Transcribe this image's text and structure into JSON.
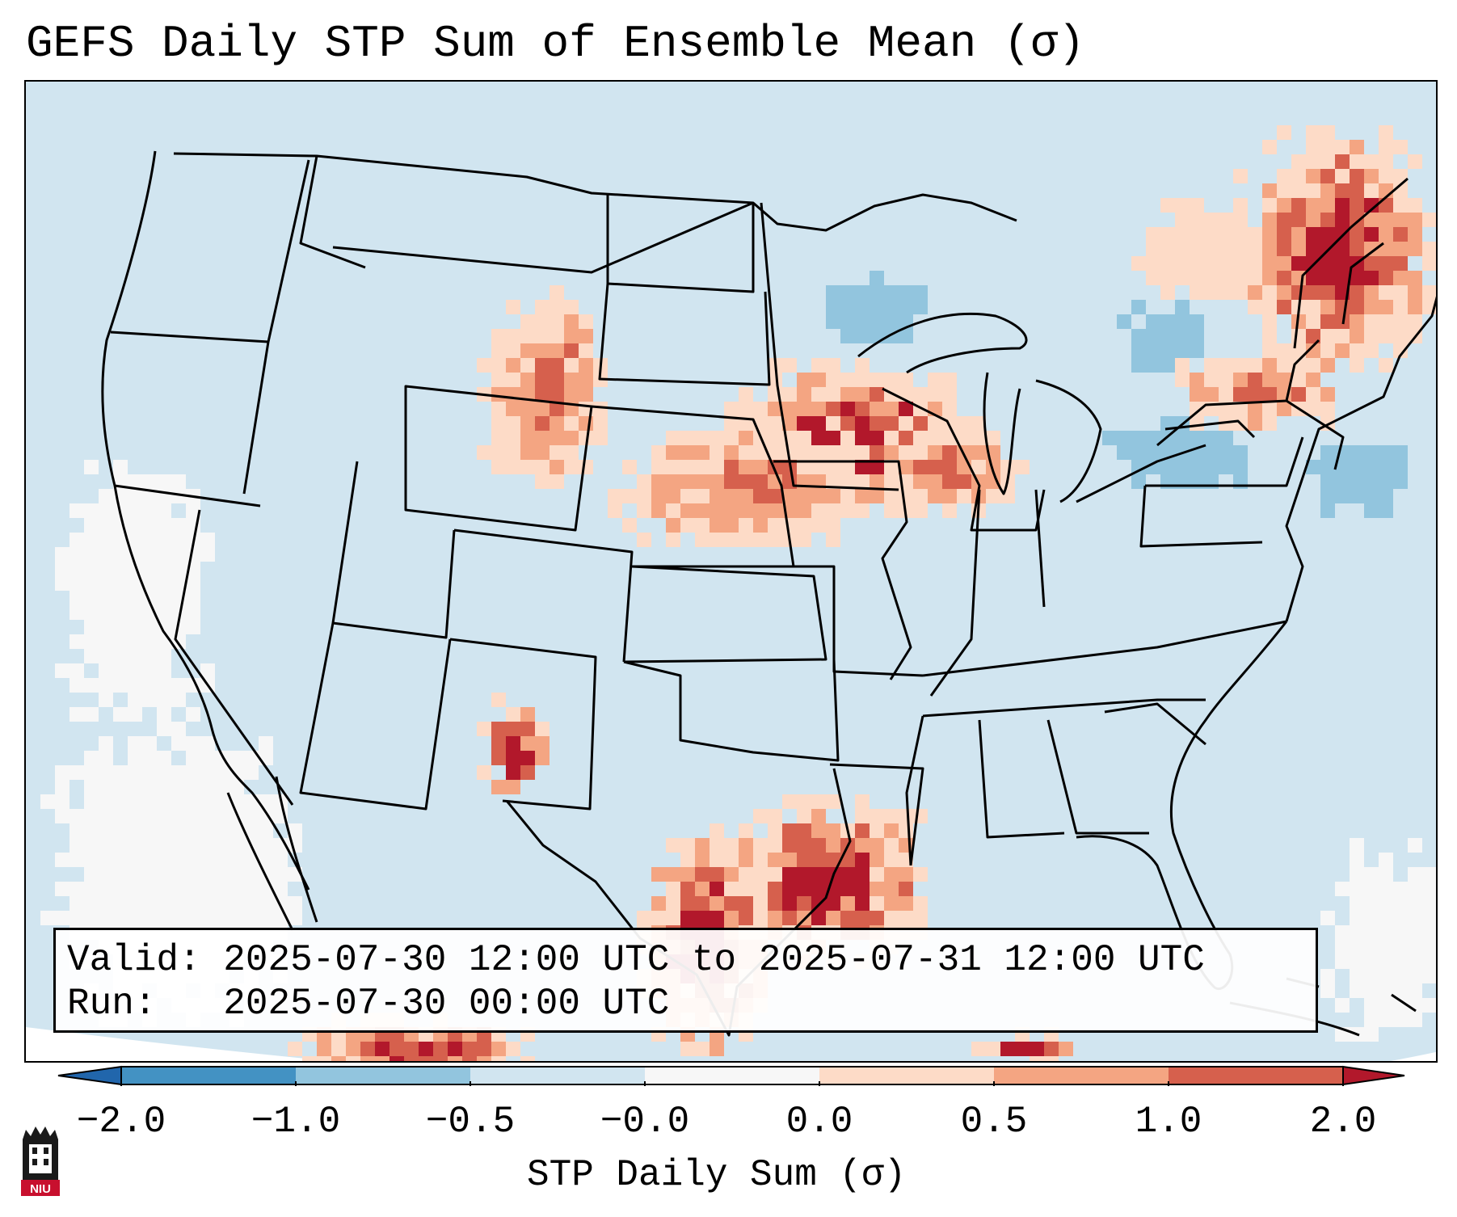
{
  "title": "GEFS Daily STP Sum of Ensemble Mean (σ)",
  "info": {
    "valid_label": "Valid:",
    "valid_value": "2025-07-30 12:00 UTC to 2025-07-31 12:00 UTC",
    "run_label": "Run:",
    "run_value": "2025-07-30 00:00 UTC"
  },
  "colorbar": {
    "title": "STP Daily Sum (σ)",
    "ticks": [
      "−2.0",
      "−1.0",
      "−0.5",
      "−0.0",
      "0.0",
      "0.5",
      "1.0",
      "2.0"
    ],
    "bins": [
      {
        "from": "-2.0",
        "to": "-1.0",
        "color": "#4392c3"
      },
      {
        "from": "-1.0",
        "to": "-0.5",
        "color": "#92c5de"
      },
      {
        "from": "-0.5",
        "to": "-0.0",
        "color": "#d1e5f0"
      },
      {
        "from": "-0.0",
        "to": "0.0",
        "color": "#f7f7f7"
      },
      {
        "from": "0.0",
        "to": "0.5",
        "color": "#fddbc7"
      },
      {
        "from": "0.5",
        "to": "1.0",
        "color": "#f4a582"
      },
      {
        "from": "1.0",
        "to": "2.0",
        "color": "#d6604d"
      }
    ],
    "under_color": "#2166ac",
    "over_color": "#b2182b"
  },
  "colors": {
    "background_field": "#d1e5f0",
    "neutral": "#f7f7f7",
    "light_red": "#fddbc7",
    "salmon": "#f4a582",
    "red": "#d6604d",
    "dark_red": "#b2182b",
    "light_blue": "#92c5de"
  },
  "logo": {
    "text": "NIU",
    "name": "niu-logo-icon"
  }
}
